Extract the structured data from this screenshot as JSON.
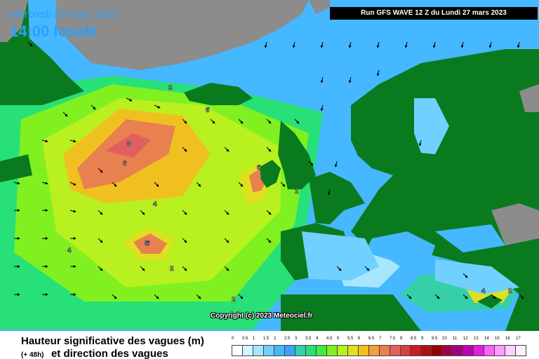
{
  "header": {
    "date": "Mercredi 29 mars 2023",
    "time": "14:00 locale",
    "run": "Run GFS WAVE 12 Z du Lundi 27 mars 2023"
  },
  "copyright": "Copyright (c) 2023 Meteociel.fr",
  "footer": {
    "title": "Hauteur significative des vagues (m)",
    "lead": "(+ 48h)",
    "subtitle": "et direction des vagues"
  },
  "legend": {
    "ticks": [
      "0",
      "0.5",
      "1",
      "1.5",
      "2",
      "2.5",
      "3",
      "3.5",
      "4",
      "4.5",
      "5",
      "5.5",
      "6",
      "6.5",
      "7",
      "7.5",
      "8",
      "8.5",
      "9",
      "9.5",
      "10",
      "11",
      "12",
      "13",
      "14",
      "15",
      "16",
      "17"
    ],
    "colors": [
      "#ffffff",
      "#d4f4ff",
      "#a8e6ff",
      "#70d0ff",
      "#45b8ff",
      "#3fa0ff",
      "#35d0a8",
      "#28e078",
      "#40ee40",
      "#80f020",
      "#b8f020",
      "#e0e020",
      "#f0c020",
      "#f0a040",
      "#e88050",
      "#e06060",
      "#d84040",
      "#c82020",
      "#b01010",
      "#900000",
      "#a0004a",
      "#a00080",
      "#c000b0",
      "#e020e0",
      "#ff60ff",
      "#ff9cff",
      "#ffd0ff",
      "#fff0ff"
    ],
    "land_color": "#0a7a1e",
    "ice_color": "#8c8c8c",
    "sea_base_color": "#45b8ff"
  },
  "contour_labels": [
    "2",
    "6",
    "6",
    "8",
    "6",
    "6",
    "4",
    "4",
    "6",
    "2",
    "2",
    "2",
    "4",
    "2"
  ]
}
